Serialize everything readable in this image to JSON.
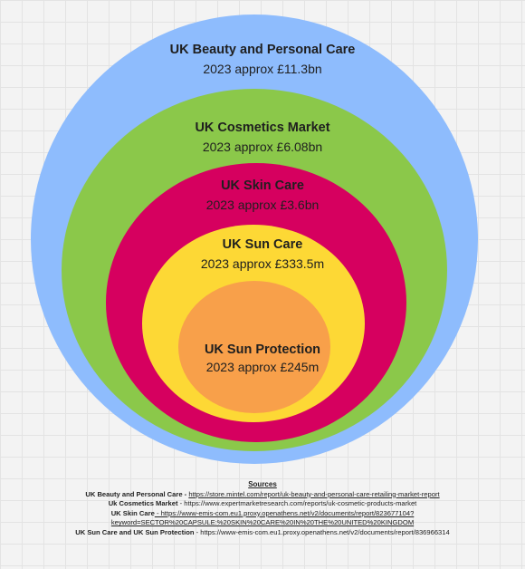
{
  "colors": {
    "beauty": "#8ebcfd",
    "cosmetics": "#8bc84a",
    "skin": "#d6005f",
    "sun_care": "#fdd835",
    "sun_protection": "#f8a04a"
  },
  "circles": [
    {
      "title": "UK Beauty and Personal Care",
      "value": "2023 approx £11.3bn"
    },
    {
      "title": "UK Cosmetics Market",
      "value": "2023 approx £6.08bn"
    },
    {
      "title": "UK Skin Care",
      "value": "2023 approx £3.6bn"
    },
    {
      "title": "UK Sun Care",
      "value": "2023 approx £333.5m"
    },
    {
      "title": "UK Sun Protection",
      "value": "2023 approx £245m"
    }
  ],
  "sources": {
    "heading": "Sources",
    "items": [
      {
        "label": "UK Beauty and Personal Care - ",
        "url": "https://store.mintel.com/report/uk-beauty-and-personal-care-retailing-market-report"
      },
      {
        "label": "Uk Cosmetics Market",
        "url": " - https://www.expertmarketresearch.com/reports/uk-cosmetic-products-market"
      },
      {
        "label": "UK Skin Care",
        "url": " - https://www-emis-com.eu1.proxy.openathens.net/v2/documents/report/823677104?",
        "url2": "keyword=SECTOR%20CAPSULE:%20SKIN%20CARE%20IN%20THE%20UNITED%20KINGDOM"
      },
      {
        "label": "UK Sun Care and UK Sun Protection",
        "url": " - https://www-emis-com.eu1.proxy.openathens.net/v2/documents/report/836966314"
      }
    ]
  }
}
